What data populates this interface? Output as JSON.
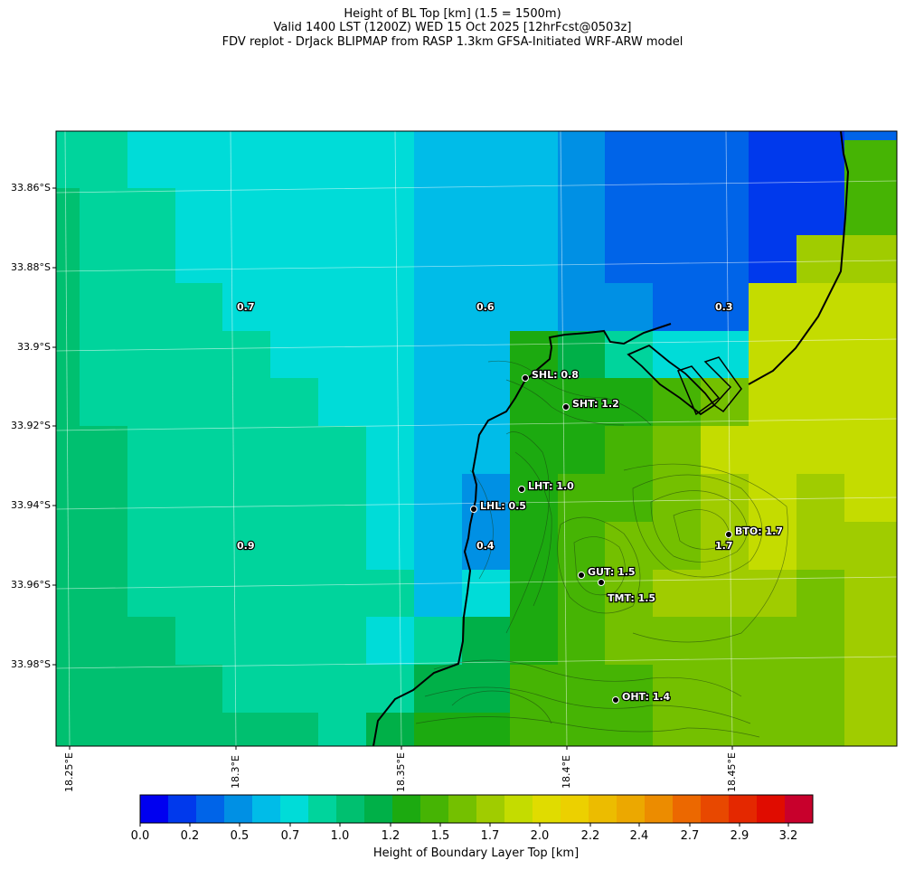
{
  "title": {
    "line1": "Height of BL Top [km] (1.5 = 1500m)",
    "line2": "Valid 1400 LST (1200Z) WED 15 Oct 2025 [12hrFcst@0503z]",
    "line3": "FDV replot - DrJack BLIPMAP from RASP 1.3km GFSA-Initiated WRF-ARW model"
  },
  "map": {
    "lat_labels": [
      "33.86°S",
      "33.88°S",
      "33.9°S",
      "33.92°S",
      "33.94°S",
      "33.96°S",
      "33.98°S"
    ],
    "lon_labels": [
      "18.25°E",
      "18.3°E",
      "18.35°E",
      "18.4°E",
      "18.45°E"
    ],
    "grid_values": [
      "0.7",
      "0.6",
      "0.3",
      "0.9",
      "0.4",
      "1.7"
    ],
    "stations": [
      {
        "code": "SHL",
        "label": "SHL: 0.8",
        "value": 0.8
      },
      {
        "code": "SHT",
        "label": "SHT: 1.2",
        "value": 1.2
      },
      {
        "code": "LHT",
        "label": "LHT: 1.0",
        "value": 1.0
      },
      {
        "code": "LHL",
        "label": "LHL: 0.5",
        "value": 0.5
      },
      {
        "code": "BTO",
        "label": "BTO: 1.7",
        "value": 1.7
      },
      {
        "code": "GUT",
        "label": "GUT: 1.5",
        "value": 1.5
      },
      {
        "code": "TMT",
        "label": "TMT: 1.5",
        "value": 1.5
      },
      {
        "code": "OHT",
        "label": "OHT: 1.4",
        "value": 1.4
      }
    ]
  },
  "colorbar": {
    "tick_labels": [
      "0.0",
      "0.2",
      "0.5",
      "0.7",
      "1.0",
      "1.2",
      "1.5",
      "1.7",
      "2.0",
      "2.2",
      "2.4",
      "2.7",
      "2.9",
      "3.2"
    ],
    "label": "Height of Boundary Layer Top [km]",
    "colors": [
      "#0000f0",
      "#0039ec",
      "#0064e8",
      "#0090e4",
      "#00bce8",
      "#00dcd8",
      "#00d49c",
      "#00c070",
      "#00b048",
      "#1caa10",
      "#46b404",
      "#74c000",
      "#a0cc00",
      "#c4dc00",
      "#e0dc00",
      "#ecd000",
      "#ecbc00",
      "#eca800",
      "#ec8c00",
      "#ec6800",
      "#e84800",
      "#e42800",
      "#e00c00",
      "#c8002c"
    ]
  }
}
